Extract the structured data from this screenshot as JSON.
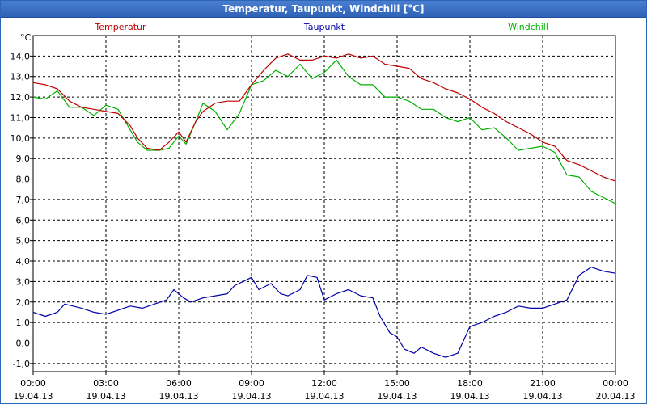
{
  "window": {
    "title": "Temperatur, Taupunkt, Windchill [°C]"
  },
  "colors": {
    "Temperatur": "#c00000",
    "Taupunkt": "#0000aa",
    "Windchill": "#00b000",
    "grid": "#000000",
    "title_bar": "#2f62b6"
  },
  "chart_data": {
    "type": "line",
    "title": "Temperatur, Taupunkt, Windchill [°C]",
    "ylabel": "°C",
    "xlabel": "",
    "ylim": [
      -1.4,
      15.0
    ],
    "xlim": [
      0,
      24
    ],
    "grid": true,
    "y_ticks": [
      "-1,0",
      "0,0",
      "1,0",
      "2,0",
      "3,0",
      "4,0",
      "5,0",
      "6,0",
      "7,0",
      "8,0",
      "9,0",
      "10,0",
      "11,0",
      "12,0",
      "13,0",
      "14,0"
    ],
    "y_tick_values": [
      -1,
      0,
      1,
      2,
      3,
      4,
      5,
      6,
      7,
      8,
      9,
      10,
      11,
      12,
      13,
      14
    ],
    "x_ticks": [
      {
        "time": "00:00",
        "date": "19.04.13"
      },
      {
        "time": "03:00",
        "date": "19.04.13"
      },
      {
        "time": "06:00",
        "date": "19.04.13"
      },
      {
        "time": "09:00",
        "date": "19.04.13"
      },
      {
        "time": "12:00",
        "date": "19.04.13"
      },
      {
        "time": "15:00",
        "date": "19.04.13"
      },
      {
        "time": "18:00",
        "date": "19.04.13"
      },
      {
        "time": "21:00",
        "date": "19.04.13"
      },
      {
        "time": "00:00",
        "date": "20.04.13"
      }
    ],
    "legend": [
      "Temperatur",
      "Taupunkt",
      "Windchill"
    ],
    "series": [
      {
        "name": "Temperatur",
        "points": [
          [
            0,
            12.7
          ],
          [
            0.5,
            12.6
          ],
          [
            1,
            12.4
          ],
          [
            1.5,
            11.8
          ],
          [
            2,
            11.5
          ],
          [
            2.5,
            11.4
          ],
          [
            3,
            11.3
          ],
          [
            3.5,
            11.2
          ],
          [
            4,
            10.6
          ],
          [
            4.3,
            10.0
          ],
          [
            4.7,
            9.5
          ],
          [
            5.2,
            9.4
          ],
          [
            5.6,
            9.8
          ],
          [
            6,
            10.3
          ],
          [
            6.3,
            9.8
          ],
          [
            6.7,
            10.8
          ],
          [
            7,
            11.3
          ],
          [
            7.5,
            11.7
          ],
          [
            8,
            11.8
          ],
          [
            8.5,
            11.8
          ],
          [
            9,
            12.6
          ],
          [
            9.5,
            13.3
          ],
          [
            10,
            13.9
          ],
          [
            10.5,
            14.1
          ],
          [
            11,
            13.8
          ],
          [
            11.5,
            13.8
          ],
          [
            12,
            14.0
          ],
          [
            12.5,
            13.9
          ],
          [
            13,
            14.1
          ],
          [
            13.5,
            13.9
          ],
          [
            14,
            14.0
          ],
          [
            14.5,
            13.6
          ],
          [
            15,
            13.5
          ],
          [
            15.5,
            13.4
          ],
          [
            16,
            12.9
          ],
          [
            16.5,
            12.7
          ],
          [
            17,
            12.4
          ],
          [
            17.5,
            12.2
          ],
          [
            18,
            11.9
          ],
          [
            18.5,
            11.5
          ],
          [
            19,
            11.2
          ],
          [
            19.5,
            10.8
          ],
          [
            20,
            10.5
          ],
          [
            20.5,
            10.2
          ],
          [
            21,
            9.8
          ],
          [
            21.5,
            9.6
          ],
          [
            22,
            8.9
          ],
          [
            22.5,
            8.7
          ],
          [
            23,
            8.4
          ],
          [
            23.5,
            8.1
          ],
          [
            24,
            7.9
          ]
        ]
      },
      {
        "name": "Taupunkt",
        "points": [
          [
            0,
            1.5
          ],
          [
            0.5,
            1.3
          ],
          [
            1,
            1.5
          ],
          [
            1.3,
            1.9
          ],
          [
            2,
            1.7
          ],
          [
            2.5,
            1.5
          ],
          [
            3,
            1.4
          ],
          [
            3.5,
            1.6
          ],
          [
            4,
            1.8
          ],
          [
            4.5,
            1.7
          ],
          [
            5,
            1.9
          ],
          [
            5.5,
            2.1
          ],
          [
            5.8,
            2.6
          ],
          [
            6.2,
            2.2
          ],
          [
            6.5,
            2.0
          ],
          [
            7,
            2.2
          ],
          [
            7.5,
            2.3
          ],
          [
            8,
            2.4
          ],
          [
            8.3,
            2.8
          ],
          [
            9,
            3.2
          ],
          [
            9.3,
            2.6
          ],
          [
            9.8,
            2.9
          ],
          [
            10.2,
            2.4
          ],
          [
            10.5,
            2.3
          ],
          [
            11,
            2.6
          ],
          [
            11.3,
            3.3
          ],
          [
            11.7,
            3.2
          ],
          [
            12,
            2.1
          ],
          [
            12.5,
            2.4
          ],
          [
            13,
            2.6
          ],
          [
            13.5,
            2.3
          ],
          [
            14,
            2.2
          ],
          [
            14.3,
            1.3
          ],
          [
            14.7,
            0.5
          ],
          [
            15,
            0.3
          ],
          [
            15.3,
            -0.3
          ],
          [
            15.7,
            -0.5
          ],
          [
            16,
            -0.2
          ],
          [
            16.5,
            -0.5
          ],
          [
            17,
            -0.7
          ],
          [
            17.5,
            -0.5
          ],
          [
            18,
            0.8
          ],
          [
            18.5,
            1.0
          ],
          [
            19,
            1.3
          ],
          [
            19.5,
            1.5
          ],
          [
            20,
            1.8
          ],
          [
            20.5,
            1.7
          ],
          [
            21,
            1.7
          ],
          [
            21.5,
            1.9
          ],
          [
            22,
            2.1
          ],
          [
            22.5,
            3.3
          ],
          [
            23,
            3.7
          ],
          [
            23.5,
            3.5
          ],
          [
            24,
            3.4
          ]
        ]
      },
      {
        "name": "Windchill",
        "points": [
          [
            0,
            12.0
          ],
          [
            0.5,
            11.9
          ],
          [
            1,
            12.3
          ],
          [
            1.5,
            11.5
          ],
          [
            2,
            11.5
          ],
          [
            2.5,
            11.1
          ],
          [
            3,
            11.6
          ],
          [
            3.5,
            11.4
          ],
          [
            4,
            10.4
          ],
          [
            4.3,
            9.8
          ],
          [
            4.7,
            9.4
          ],
          [
            5.2,
            9.4
          ],
          [
            5.6,
            9.5
          ],
          [
            6,
            10.1
          ],
          [
            6.3,
            9.7
          ],
          [
            6.7,
            10.8
          ],
          [
            7,
            11.7
          ],
          [
            7.5,
            11.3
          ],
          [
            8,
            10.4
          ],
          [
            8.5,
            11.2
          ],
          [
            9,
            12.6
          ],
          [
            9.5,
            12.8
          ],
          [
            10,
            13.3
          ],
          [
            10.5,
            13.0
          ],
          [
            11,
            13.6
          ],
          [
            11.5,
            12.9
          ],
          [
            12,
            13.2
          ],
          [
            12.5,
            13.8
          ],
          [
            13,
            13.0
          ],
          [
            13.5,
            12.6
          ],
          [
            14,
            12.6
          ],
          [
            14.5,
            12.0
          ],
          [
            15,
            12.0
          ],
          [
            15.5,
            11.8
          ],
          [
            16,
            11.4
          ],
          [
            16.5,
            11.4
          ],
          [
            17,
            11.0
          ],
          [
            17.5,
            10.8
          ],
          [
            18,
            11.0
          ],
          [
            18.5,
            10.4
          ],
          [
            19,
            10.5
          ],
          [
            19.5,
            10.0
          ],
          [
            20,
            9.4
          ],
          [
            20.5,
            9.5
          ],
          [
            21,
            9.6
          ],
          [
            21.5,
            9.3
          ],
          [
            22,
            8.2
          ],
          [
            22.5,
            8.1
          ],
          [
            23,
            7.4
          ],
          [
            23.5,
            7.1
          ],
          [
            24,
            6.8
          ]
        ]
      }
    ]
  }
}
